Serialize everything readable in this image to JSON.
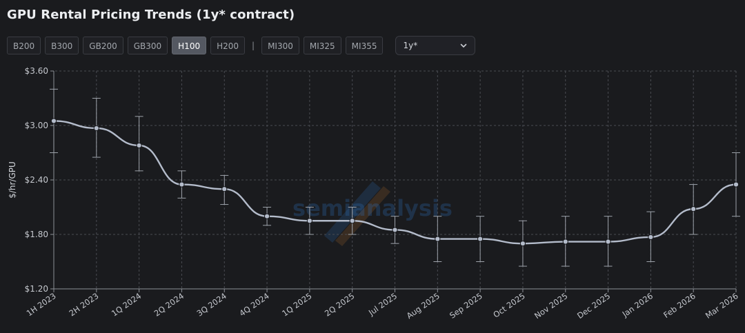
{
  "page": {
    "title": "GPU Rental Pricing Trends (1y* contract)"
  },
  "toolbar": {
    "gpus_nvidia": [
      "B200",
      "B300",
      "GB200",
      "GB300",
      "H100",
      "H200"
    ],
    "separator": "|",
    "gpus_amd": [
      "MI300",
      "MI325",
      "MI355"
    ],
    "selected_gpu": "H100",
    "contract_select": {
      "value": "1y*",
      "icon": "chevron-down-icon"
    }
  },
  "colors": {
    "background": "#1a1b1e",
    "line": "#b4bccb",
    "grid": "#4a4c52",
    "active_chip": "#545861",
    "watermark_blue": "#2f6fb7",
    "watermark_orange": "#b8732e"
  },
  "chart_data": {
    "type": "line",
    "title": "",
    "xlabel": "",
    "ylabel": "$/hr/GPU",
    "ylim": [
      1.2,
      3.6
    ],
    "yticks": [
      1.2,
      1.8,
      2.4,
      3.0,
      3.6
    ],
    "ytick_labels": [
      "$1.20",
      "$1.80",
      "$2.40",
      "$3.00",
      "$3.60"
    ],
    "grid": true,
    "watermark": "semianalysis",
    "categories": [
      "1H 2023",
      "2H 2023",
      "1Q 2024",
      "2Q 2024",
      "3Q 2024",
      "4Q 2024",
      "1Q 2025",
      "2Q 2025",
      "Jul 2025",
      "Aug 2025",
      "Sep 2025",
      "Oct 2025",
      "Nov 2025",
      "Dec 2025",
      "Jan 2026",
      "Feb 2026",
      "Mar 2026"
    ],
    "series": [
      {
        "values": [
          3.05,
          2.97,
          2.78,
          2.35,
          2.3,
          2.0,
          1.95,
          1.95,
          1.85,
          1.75,
          1.75,
          1.7,
          1.72,
          1.72,
          1.77,
          2.08,
          2.35
        ],
        "error_low": [
          2.7,
          2.65,
          2.5,
          2.2,
          2.13,
          1.9,
          1.8,
          1.8,
          1.7,
          1.5,
          1.5,
          1.45,
          1.45,
          1.45,
          1.5,
          1.8,
          2.0
        ],
        "error_high": [
          3.4,
          3.3,
          3.1,
          2.5,
          2.45,
          2.1,
          2.1,
          2.1,
          2.0,
          2.0,
          2.0,
          1.95,
          2.0,
          2.0,
          2.05,
          2.35,
          2.7
        ]
      }
    ]
  }
}
